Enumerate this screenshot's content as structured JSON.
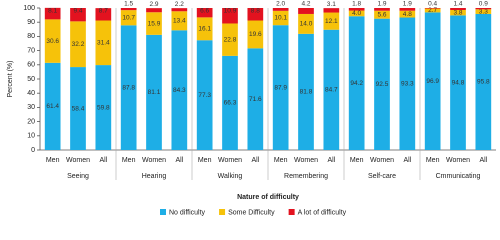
{
  "chart_data": {
    "type": "stacked_bar",
    "y_label": "Percent (%)",
    "x_label": "Nature of difficulty",
    "categories": [
      "Men",
      "Women",
      "All",
      "Men",
      "Women",
      "All",
      "Men",
      "Women",
      "All",
      "Men",
      "Women",
      "All",
      "Men",
      "Women",
      "All",
      "Men",
      "Women",
      "All"
    ],
    "groups": [
      "Seeing",
      "Hearing",
      "Walking",
      "Remembering",
      "Self-care",
      "Cmmunicating"
    ],
    "series": [
      {
        "name": "No difficulty",
        "color": "#1eaee6",
        "values": [
          61.4,
          58.4,
          59.8,
          87.8,
          81.1,
          84.3,
          77.3,
          66.3,
          71.6,
          87.9,
          81.8,
          84.7,
          94.2,
          92.5,
          93.3,
          96.9,
          94.8,
          95.8
        ],
        "value_labels": [
          "61.4",
          "58.4",
          "59.8",
          "87.8",
          "81.1",
          "84.3",
          "77.3",
          "66.3",
          "71.6",
          "87.9",
          "81.8",
          "84.7",
          "94.2",
          "92.5",
          "93.3",
          "96.9",
          "94.8",
          "95.8"
        ]
      },
      {
        "name": "Some Difficulty",
        "color": "#f6c20a",
        "values": [
          30.6,
          32.2,
          31.4,
          10.7,
          15.9,
          13.4,
          16.1,
          22.8,
          19.6,
          10.1,
          14.0,
          12.1,
          4.0,
          5.6,
          4.8,
          2.7,
          3.8,
          3.3
        ],
        "value_labels": [
          "30.6",
          "32.2",
          "31.4",
          "10.7",
          "15.9",
          "13.4",
          "16.1",
          "22.8",
          "19.6",
          "10.1",
          "14.0",
          "12.1",
          "4.0",
          "5.6",
          "4.8",
          "2.7",
          "3.8",
          "3.3"
        ]
      },
      {
        "name": "A lot of difficulty",
        "color": "#e3121f",
        "values": [
          8.1,
          9.4,
          8.7,
          1.5,
          2.9,
          2.2,
          6.6,
          10.9,
          8.8,
          2.0,
          4.2,
          3.1,
          1.8,
          1.9,
          1.9,
          0.4,
          1.4,
          0.9
        ],
        "value_labels": [
          "8.1",
          "9.4",
          "8.7",
          "1.5",
          "2.9",
          "2.2",
          "6.6",
          "10.9",
          "8.8",
          "2.0",
          "4.2",
          "3.1",
          "1.8",
          "1.9",
          "1.9",
          "0.4",
          "1.4",
          "0.9"
        ]
      }
    ],
    "ylim": [
      0,
      100
    ],
    "yticks": [
      0,
      10,
      20,
      30,
      40,
      50,
      60,
      70,
      80,
      90,
      100
    ]
  }
}
